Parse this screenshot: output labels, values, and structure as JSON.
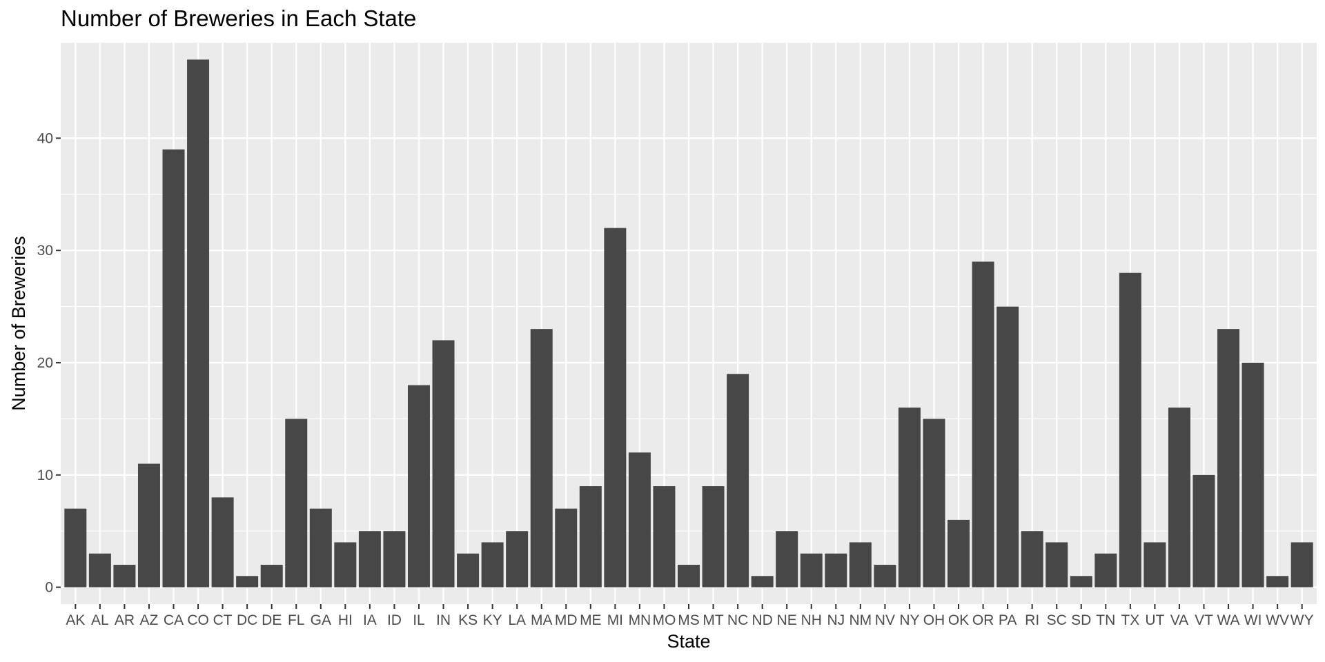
{
  "chart_data": {
    "type": "bar",
    "title": "Number of Breweries in Each State",
    "xlabel": "State",
    "ylabel": "Number of Breweries",
    "categories": [
      "AK",
      "AL",
      "AR",
      "AZ",
      "CA",
      "CO",
      "CT",
      "DC",
      "DE",
      "FL",
      "GA",
      "HI",
      "IA",
      "ID",
      "IL",
      "IN",
      "KS",
      "KY",
      "LA",
      "MA",
      "MD",
      "ME",
      "MI",
      "MN",
      "MO",
      "MS",
      "MT",
      "NC",
      "ND",
      "NE",
      "NH",
      "NJ",
      "NM",
      "NV",
      "NY",
      "OH",
      "OK",
      "OR",
      "PA",
      "RI",
      "SC",
      "SD",
      "TN",
      "TX",
      "UT",
      "VA",
      "VT",
      "WA",
      "WI",
      "WV",
      "WY"
    ],
    "values": [
      7,
      3,
      2,
      11,
      39,
      47,
      8,
      1,
      2,
      15,
      7,
      4,
      5,
      5,
      18,
      22,
      3,
      4,
      5,
      23,
      7,
      9,
      32,
      12,
      9,
      2,
      9,
      19,
      1,
      5,
      3,
      3,
      4,
      2,
      16,
      15,
      6,
      29,
      25,
      5,
      4,
      1,
      3,
      28,
      4,
      16,
      10,
      23,
      20,
      1,
      4
    ],
    "yticks": [
      0,
      10,
      20,
      30,
      40
    ],
    "ylim": [
      -1.5,
      48.5
    ],
    "grid": true,
    "legend": "none",
    "colors": {
      "panel": "#ebebeb",
      "bar": "#474747",
      "grid": "#ffffff",
      "tick_text": "#4d4d4d",
      "tick_mark": "#333333"
    }
  }
}
